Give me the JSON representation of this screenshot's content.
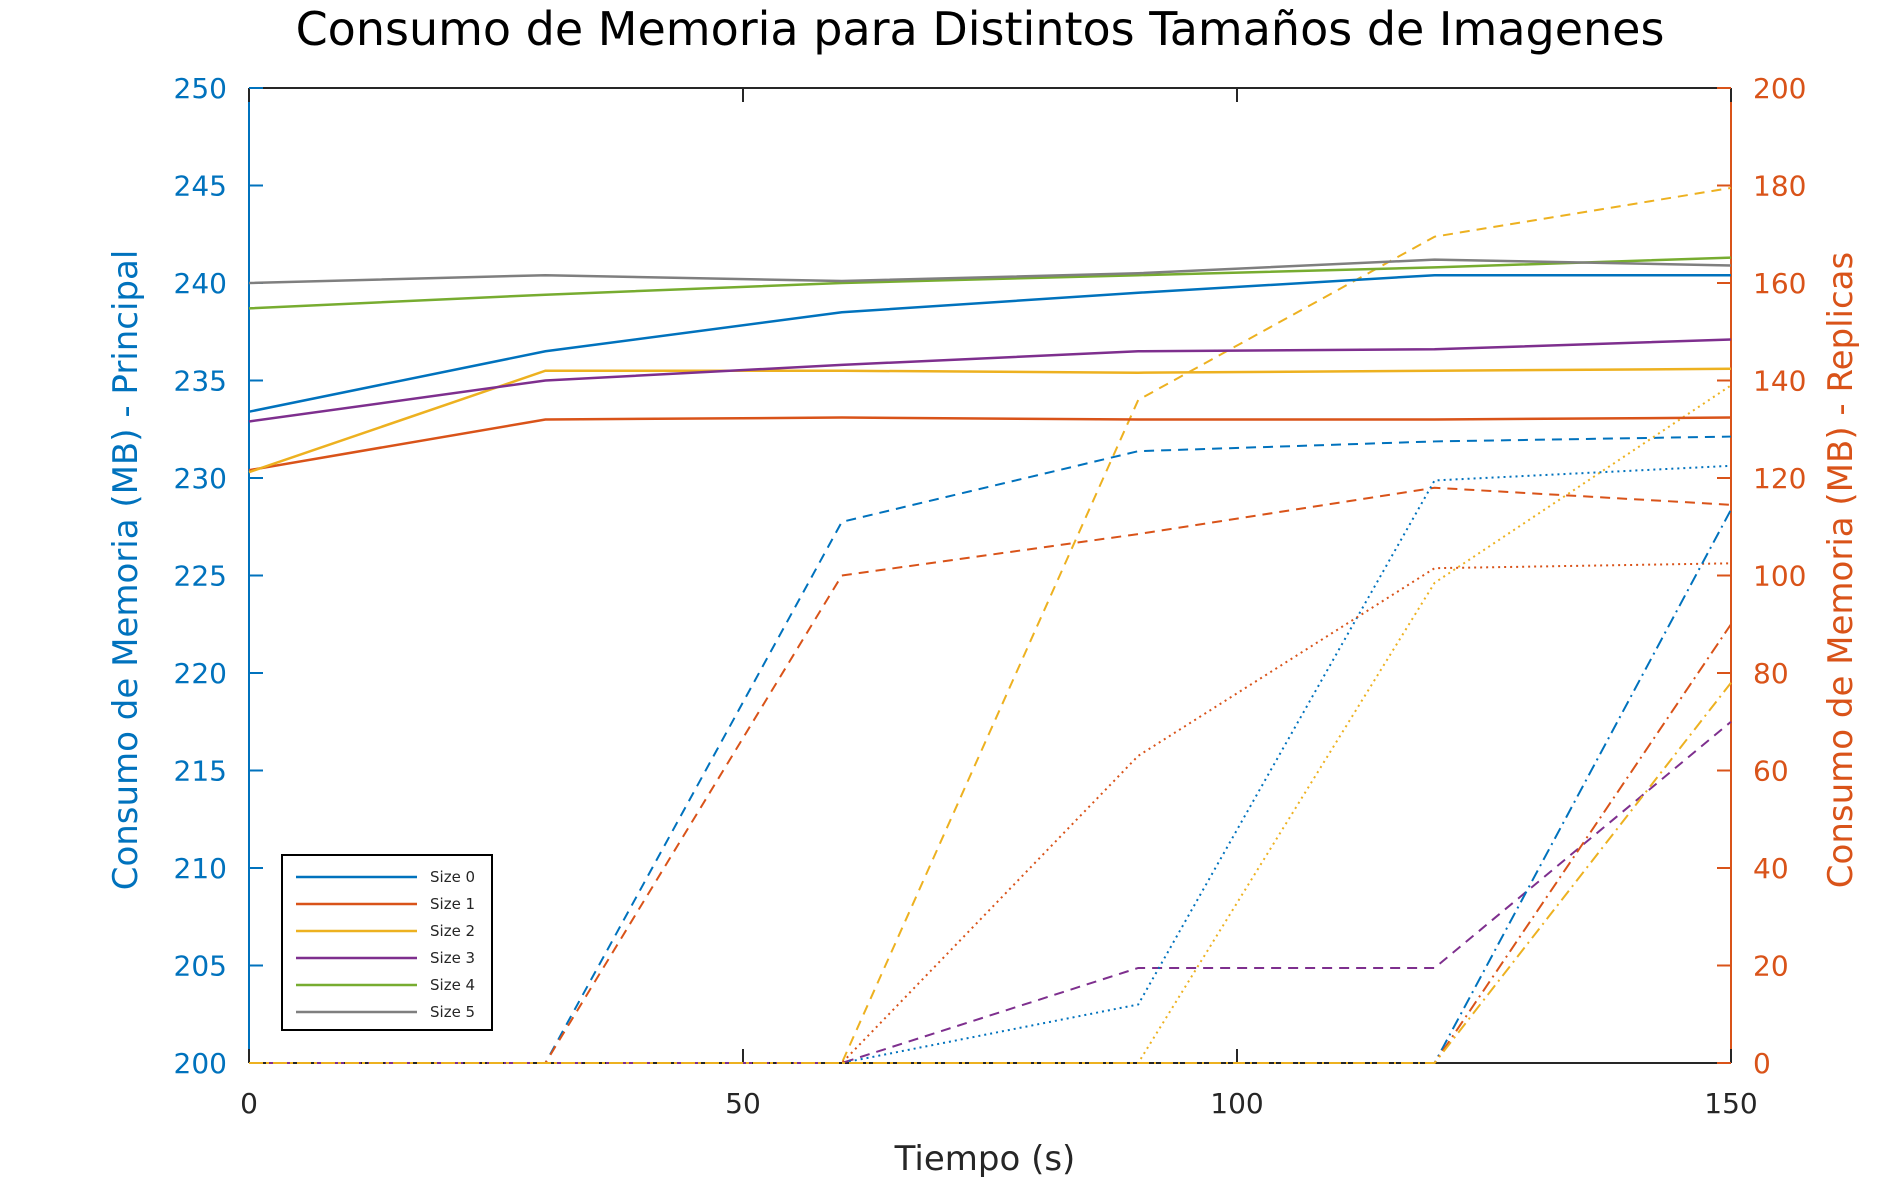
{
  "chart_data": {
    "type": "line",
    "title": "Consumo de Memoria para Distintos Tamaños de Imagenes",
    "xlabel": "Tiempo (s)",
    "ylabel_left": "Consumo de Memoria (MB) - Principal",
    "ylabel_right": "Consumo de Memoria (MB) - Replicas",
    "xlim": [
      0,
      150
    ],
    "ylim_left": [
      200,
      250
    ],
    "ylim_right": [
      0,
      200
    ],
    "xticks": [
      "0",
      "50",
      "100",
      "150"
    ],
    "yticks_left": [
      "200",
      "205",
      "210",
      "215",
      "220",
      "225",
      "230",
      "235",
      "240",
      "245",
      "250"
    ],
    "yticks_right": [
      "0",
      "20",
      "40",
      "60",
      "80",
      "100",
      "120",
      "140",
      "160",
      "180",
      "200"
    ],
    "grid": false,
    "legend_position": "bottom-left",
    "x": [
      0,
      30,
      60,
      90,
      120,
      150
    ],
    "colors": {
      "left_axis": "#0072BD",
      "right_axis": "#D95319",
      "frame": "#262626"
    },
    "series": [
      {
        "name": "Size 0",
        "axis": "left",
        "style": "solid",
        "color": "#0072BD",
        "values": [
          233.4,
          236.5,
          238.5,
          239.5,
          240.4,
          240.4
        ]
      },
      {
        "name": "Size 1",
        "axis": "left",
        "style": "solid",
        "color": "#D95319",
        "values": [
          230.4,
          233.0,
          233.1,
          233.0,
          233.0,
          233.1
        ]
      },
      {
        "name": "Size 2",
        "axis": "left",
        "style": "solid",
        "color": "#EDB120",
        "values": [
          230.3,
          235.5,
          235.5,
          235.4,
          235.5,
          235.6
        ]
      },
      {
        "name": "Size 3",
        "axis": "left",
        "style": "solid",
        "color": "#7E2F8E",
        "values": [
          232.9,
          235.0,
          235.8,
          236.5,
          236.6,
          237.1
        ]
      },
      {
        "name": "Size 4",
        "axis": "left",
        "style": "solid",
        "color": "#77AC30",
        "values": [
          238.7,
          239.4,
          240.0,
          240.4,
          240.8,
          241.3
        ]
      },
      {
        "name": "Size 5",
        "axis": "left",
        "style": "solid",
        "color": "#7F7F7F",
        "values": [
          240.0,
          240.4,
          240.1,
          240.5,
          241.2,
          240.9
        ]
      }
    ],
    "replica_series": [
      {
        "axis": "right",
        "style": "dashed",
        "color": "#0072BD",
        "values": [
          0,
          0,
          111,
          125.5,
          127.5,
          128.5
        ]
      },
      {
        "axis": "right",
        "style": "dashed",
        "color": "#D95319",
        "values": [
          0,
          0,
          100,
          108.5,
          118,
          114.5
        ]
      },
      {
        "axis": "right",
        "style": "dashed",
        "color": "#EDB120",
        "values": [
          0,
          0,
          0,
          136,
          169.5,
          179.5
        ]
      },
      {
        "axis": "right",
        "style": "dashed",
        "color": "#7E2F8E",
        "values": [
          0,
          0,
          0,
          19.5,
          19.5,
          70
        ]
      },
      {
        "axis": "right",
        "style": "dotted",
        "color": "#0072BD",
        "values": [
          0,
          0,
          0,
          12,
          119.5,
          122.5
        ]
      },
      {
        "axis": "right",
        "style": "dotted",
        "color": "#D95319",
        "values": [
          0,
          0,
          0,
          63,
          101.5,
          102.5
        ]
      },
      {
        "axis": "right",
        "style": "dotted",
        "color": "#EDB120",
        "values": [
          0,
          0,
          0,
          0,
          98.5,
          139
        ]
      },
      {
        "axis": "right",
        "style": "dashdot",
        "color": "#0072BD",
        "values": [
          0,
          0,
          0,
          0,
          0,
          113.5
        ]
      },
      {
        "axis": "right",
        "style": "dashdot",
        "color": "#D95319",
        "values": [
          0,
          0,
          0,
          0,
          0,
          90
        ]
      },
      {
        "axis": "right",
        "style": "dashdot",
        "color": "#EDB120",
        "values": [
          0,
          0,
          0,
          0,
          0,
          78
        ]
      }
    ]
  }
}
